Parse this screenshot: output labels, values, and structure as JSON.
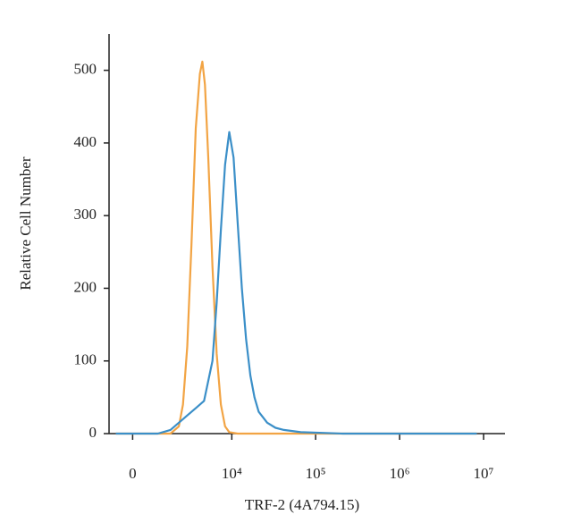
{
  "chart_data": {
    "type": "line",
    "x_label": "TRF-2 (4A794.15)",
    "y_label": "Relative Cell Number",
    "x_scale": "asinh",
    "xlim": [
      -918,
      18000000
    ],
    "xticks": [
      0,
      {
        "value": 10000,
        "label": "10⁴"
      },
      {
        "value": 100000,
        "label": "10⁵"
      },
      {
        "value": 1000000,
        "label": "10⁶"
      },
      {
        "value": 10000000,
        "label": "10⁷"
      }
    ],
    "ylim": [
      0,
      550
    ],
    "yticks": [
      0,
      100,
      200,
      300,
      400,
      500
    ],
    "series": [
      {
        "color": "#f2a444",
        "x": [
          -632,
          0,
          991,
          1635,
          2165,
          2466,
          2812,
          3193,
          3617,
          4081,
          4386,
          4717,
          5181,
          5843,
          6572,
          7380,
          8308,
          9328,
          11766,
          8300000
        ],
        "values": [
          0,
          0,
          0,
          0,
          10,
          40,
          120,
          260,
          420,
          495,
          512,
          480,
          380,
          230,
          110,
          40,
          10,
          2,
          0,
          0
        ]
      },
      {
        "color": "#3b8fc8",
        "x": [
          -632,
          991,
          1635,
          2165,
          2812,
          3617,
          4600,
          5843,
          6572,
          7380,
          8308,
          9328,
          10494,
          11766,
          13210,
          14840,
          16669,
          18680,
          20975,
          26447,
          33258,
          41870,
          66380,
          210000,
          8300000
        ],
        "values": [
          0,
          0,
          5,
          15,
          25,
          35,
          45,
          100,
          180,
          280,
          370,
          415,
          380,
          290,
          200,
          130,
          80,
          50,
          30,
          15,
          8,
          5,
          2,
          0,
          0
        ]
      }
    ]
  }
}
